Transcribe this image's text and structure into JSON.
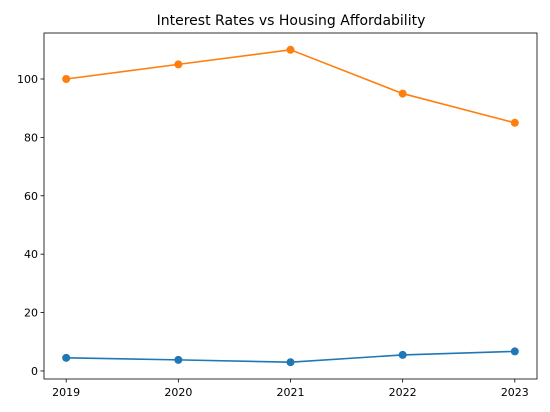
{
  "chart_data": {
    "type": "line",
    "title": "Interest Rates vs Housing Affordability",
    "xlabel": "",
    "ylabel": "",
    "categories": [
      "2019",
      "2020",
      "2021",
      "2022",
      "2023"
    ],
    "series": [
      {
        "values": [
          4.5,
          3.8,
          3.0,
          5.5,
          6.7
        ],
        "color": "#1f77b4"
      },
      {
        "values": [
          100,
          105,
          110,
          95,
          85
        ],
        "color": "#ff7f0e"
      }
    ],
    "ylim": [
      -2.75,
      115.75
    ],
    "yticks": [
      0,
      20,
      40,
      60,
      80,
      100
    ],
    "grid": false,
    "legend": "none"
  }
}
